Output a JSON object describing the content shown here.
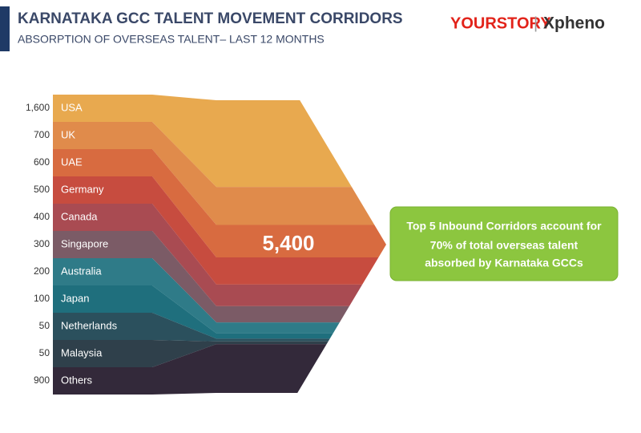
{
  "chart_data": {
    "type": "flow",
    "title": "KARNATAKA GCC TALENT MOVEMENT CORRIDORS",
    "subtitle": "ABSORPTION OF OVERSEAS TALENT– LAST 12 MONTHS",
    "brand": [
      "YOURSTORY",
      "|",
      "Xpheno"
    ],
    "categories": [
      "USA",
      "UK",
      "UAE",
      "Germany",
      "Canada",
      "Singapore",
      "Australia",
      "Japan",
      "Netherlands",
      "Malaysia",
      "Others"
    ],
    "values": [
      1600,
      700,
      600,
      500,
      400,
      300,
      200,
      100,
      50,
      50,
      900
    ],
    "value_labels": [
      "1,600",
      "700",
      "600",
      "500",
      "400",
      "300",
      "200",
      "100",
      "50",
      "50",
      "900"
    ],
    "colors": [
      "#e8a94f",
      "#e08b4b",
      "#d86b40",
      "#c74c3f",
      "#a94b52",
      "#7b5b66",
      "#2f7b88",
      "#1f6f7d",
      "#2b505d",
      "#2f404b",
      "#33293a"
    ],
    "total": {
      "value": 5400,
      "label": "5,400"
    },
    "annotation": [
      "Top 5 Inbound Corridors account for",
      "70% of total overseas talent",
      "absorbed by Karnataka GCCs"
    ]
  }
}
